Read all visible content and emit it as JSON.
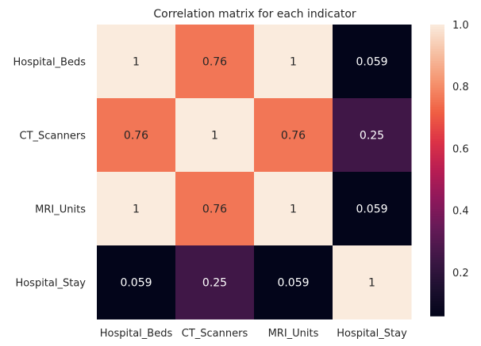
{
  "chart_data": {
    "type": "heatmap",
    "title": "Correlation matrix for each indicator",
    "x_labels": [
      "Hospital_Beds",
      "CT_Scanners",
      "MRI_Units",
      "Hospital_Stay"
    ],
    "y_labels": [
      "Hospital_Beds",
      "CT_Scanners",
      "MRI_Units",
      "Hospital_Stay"
    ],
    "values": [
      [
        1,
        0.76,
        1,
        0.059
      ],
      [
        0.76,
        1,
        0.76,
        0.25
      ],
      [
        1,
        0.76,
        1,
        0.059
      ],
      [
        0.059,
        0.25,
        0.059,
        1
      ]
    ],
    "annotations": [
      [
        "1",
        "0.76",
        "1",
        "0.059"
      ],
      [
        "0.76",
        "1",
        "0.76",
        "0.25"
      ],
      [
        "1",
        "0.76",
        "1",
        "0.059"
      ],
      [
        "0.059",
        "0.25",
        "0.059",
        "1"
      ]
    ],
    "colorbar": {
      "colormap": "rocket",
      "range": [
        0.059,
        1.0
      ],
      "ticks": [
        0.2,
        0.4,
        0.6,
        0.8,
        1.0
      ],
      "tick_labels": [
        "0.2",
        "0.4",
        "0.6",
        "0.8",
        "1.0"
      ]
    },
    "annotation_colors": {
      "dark_text": "#262626",
      "light_text": "#ffffff"
    }
  }
}
